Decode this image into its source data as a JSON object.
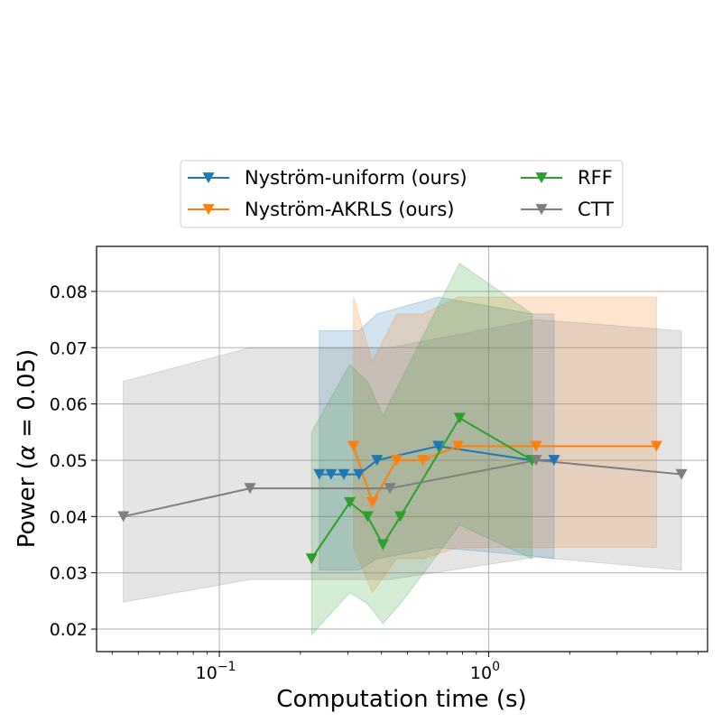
{
  "chart_data": {
    "type": "line",
    "xlabel": "Computation time (s)",
    "ylabel_prefix": "Power (",
    "ylabel_alpha": "α",
    "ylabel_eq": " = 0.05)",
    "xscale": "log",
    "xlim": [
      0.035,
      6.5
    ],
    "ylim": [
      0.016,
      0.088
    ],
    "xticks": [
      {
        "value": 0.1,
        "base": "10",
        "exp": "−1"
      },
      {
        "value": 1,
        "base": "10",
        "exp": "0"
      }
    ],
    "yticks": [
      {
        "value": 0.02,
        "label": "0.02"
      },
      {
        "value": 0.03,
        "label": "0.03"
      },
      {
        "value": 0.04,
        "label": "0.04"
      },
      {
        "value": 0.05,
        "label": "0.05"
      },
      {
        "value": 0.06,
        "label": "0.06"
      },
      {
        "value": 0.07,
        "label": "0.07"
      },
      {
        "value": 0.08,
        "label": "0.08"
      }
    ],
    "grid": true,
    "legend": {
      "location": "above plot, centered",
      "columns": 2
    },
    "series": [
      {
        "name": "Nyström-uniform (ours)",
        "color": "#1f77b4",
        "marker": "triangle-down",
        "x": [
          0.235,
          0.26,
          0.29,
          0.33,
          0.385,
          0.65,
          1.45,
          1.75
        ],
        "y": [
          0.0475,
          0.0475,
          0.0475,
          0.0475,
          0.05,
          0.0525,
          0.05,
          0.05
        ],
        "band_upper": [
          0.073,
          0.073,
          0.073,
          0.073,
          0.076,
          0.079,
          0.076,
          0.076
        ],
        "band_lower": [
          0.0305,
          0.0305,
          0.0305,
          0.0305,
          0.0325,
          0.0345,
          0.033,
          0.0325
        ]
      },
      {
        "name": "Nyström-AKRLS (ours)",
        "color": "#ff7f0e",
        "marker": "triangle-down",
        "x": [
          0.315,
          0.37,
          0.455,
          0.57,
          0.77,
          1.5,
          4.2
        ],
        "y": [
          0.0525,
          0.0425,
          0.05,
          0.05,
          0.0525,
          0.0525,
          0.0525
        ],
        "band_upper": [
          0.079,
          0.0675,
          0.076,
          0.076,
          0.079,
          0.079,
          0.079
        ],
        "band_lower": [
          0.0345,
          0.0265,
          0.0325,
          0.0325,
          0.0345,
          0.0345,
          0.0345
        ]
      },
      {
        "name": "RFF",
        "color": "#2ca02c",
        "marker": "triangle-down",
        "x": [
          0.22,
          0.305,
          0.355,
          0.405,
          0.47,
          0.78,
          1.45
        ],
        "y": [
          0.0325,
          0.0425,
          0.04,
          0.035,
          0.04,
          0.0575,
          0.05
        ],
        "band_upper": [
          0.055,
          0.067,
          0.064,
          0.058,
          0.064,
          0.085,
          0.076
        ],
        "band_lower": [
          0.019,
          0.0265,
          0.0245,
          0.021,
          0.0245,
          0.0385,
          0.0325
        ]
      },
      {
        "name": "CTT",
        "color": "#7f7f7f",
        "marker": "triangle-down",
        "x": [
          0.044,
          0.13,
          0.43,
          1.5,
          5.2
        ],
        "y": [
          0.04,
          0.045,
          0.045,
          0.05,
          0.0475
        ],
        "band_upper": [
          0.064,
          0.07,
          0.07,
          0.075,
          0.073
        ],
        "band_lower": [
          0.0248,
          0.0288,
          0.0288,
          0.0328,
          0.0305
        ]
      }
    ]
  }
}
